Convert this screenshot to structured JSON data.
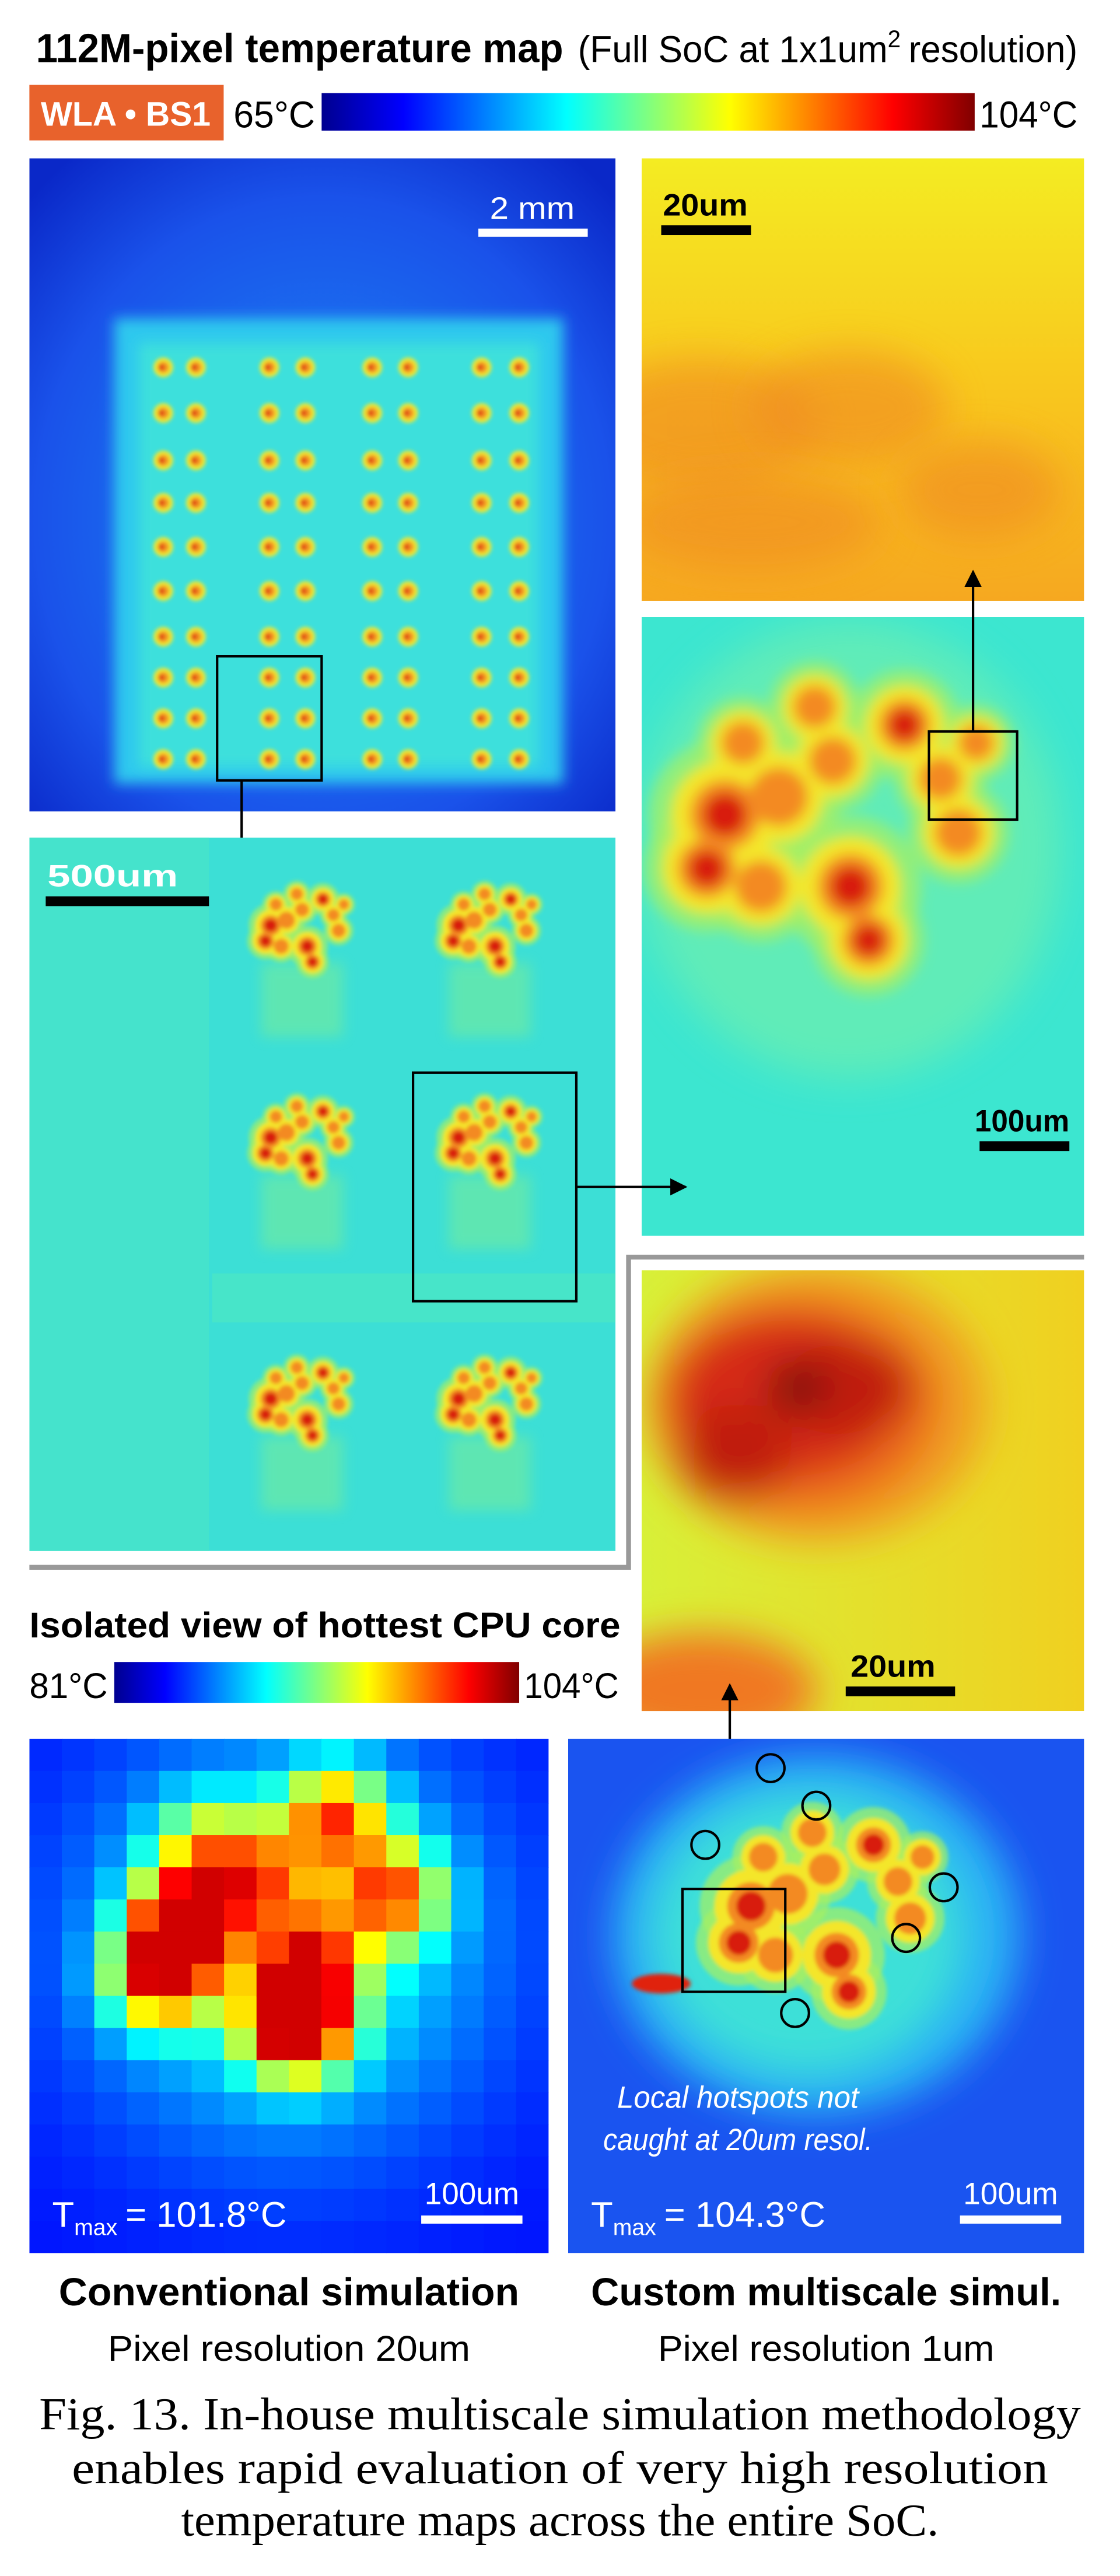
{
  "header": {
    "title": "112M-pixel temperature map",
    "subtitle_start": "(Full SoC at 1x1um",
    "subtitle_sup": "2",
    "subtitle_end": "resolution)",
    "badge": "WLA • BS1",
    "scale_min": "65°C",
    "scale_max": "104°C"
  },
  "panels": {
    "soc_scale": "2 mm",
    "top_right_scale": "20um",
    "core_scale": "500um",
    "mid_right_scale": "100um",
    "zoom_scale": "20um"
  },
  "isolated": {
    "title": "Isolated view of hottest CPU core",
    "scale_min": "81°C",
    "scale_max": "104°C"
  },
  "conventional": {
    "tmax_symbol": "T",
    "tmax_sub": "max",
    "tmax_value": "= 101.8°C",
    "scale": "100um",
    "title": "Conventional simulation",
    "subtitle": "Pixel resolution 20um"
  },
  "custom": {
    "tmax_symbol": "T",
    "tmax_sub": "max",
    "tmax_value": "= 104.3°C",
    "scale": "100um",
    "annotation": [
      "Local hotspots not",
      "caught at 20um resol."
    ],
    "title": "Custom multiscale simul.",
    "subtitle": "Pixel resolution 1um"
  },
  "caption": [
    "Fig. 13. In-house multiscale simulation methodology",
    "enables rapid evaluation of very high resolution",
    "temperature maps across the entire SoC."
  ]
}
